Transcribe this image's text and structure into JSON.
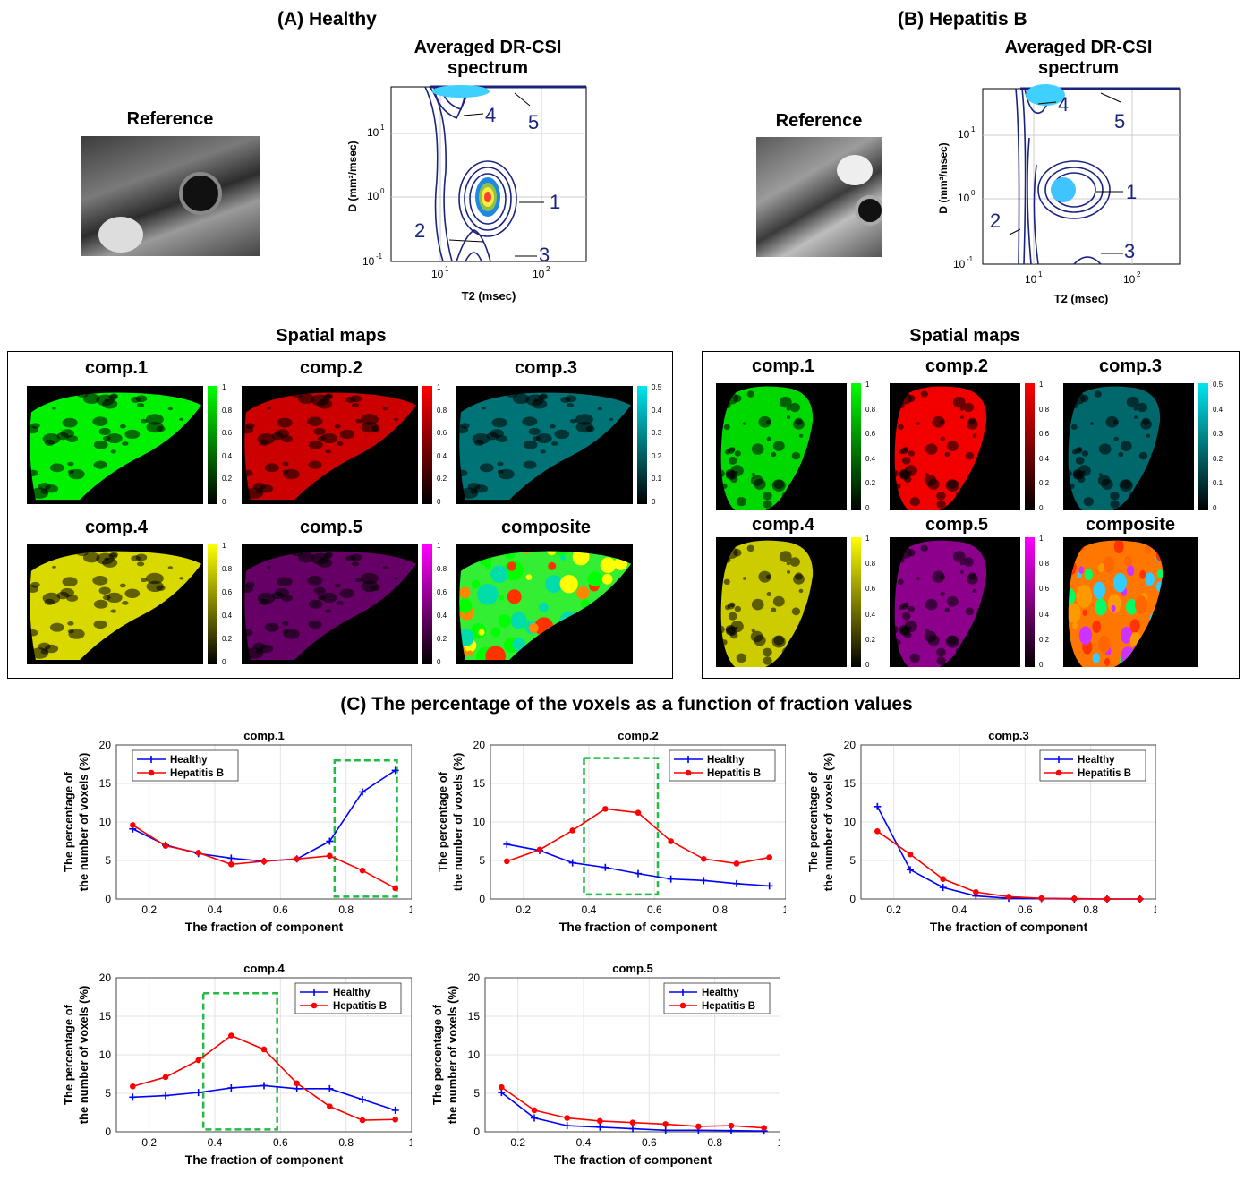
{
  "panel_a": {
    "title": "(A) Healthy",
    "reference_label": "Reference",
    "spectrum_title_line1": "Averaged DR-CSI",
    "spectrum_title_line2": "spectrum",
    "spectrum_xlabel": "T2 (msec)",
    "spectrum_ylabel": "D (mm²/msec)",
    "peak_labels": [
      "1",
      "2",
      "3",
      "4",
      "5"
    ],
    "spatial_maps_title": "Spatial maps"
  },
  "panel_b": {
    "title": "(B) Hepatitis B",
    "reference_label": "Reference",
    "spectrum_title_line1": "Averaged DR-CSI",
    "spectrum_title_line2": "spectrum",
    "spectrum_xlabel": "T2 (msec)",
    "spectrum_ylabel": "D (mm²/msec)",
    "peak_labels": [
      "1",
      "2",
      "3",
      "4",
      "5"
    ],
    "spatial_maps_title": "Spatial maps"
  },
  "map_titles": [
    "comp.1",
    "comp.2",
    "comp.3",
    "comp.4",
    "comp.5",
    "composite"
  ],
  "colorbar_ticks_full": [
    "1",
    "0.8",
    "0.6",
    "0.4",
    "0.2",
    "0"
  ],
  "colorbar_ticks_half": [
    "0.5",
    "0.4",
    "0.3",
    "0.2",
    "0.1",
    "0"
  ],
  "colors": {
    "comp1": "#00ff00",
    "comp2": "#ff0000",
    "comp3": "#00e5ee",
    "comp4": "#ffff00",
    "comp5": "#ff00ff",
    "healthy": "#0000ff",
    "hepatitis": "#ff0000",
    "box": "#22bb44"
  },
  "panel_c_title": "(C) The percentage of the voxels as a function of fraction values",
  "chart_data": [
    {
      "type": "line",
      "title": "comp.1",
      "xlabel": "The fraction of component",
      "ylabel": "The percentage of the number of voxels (%)",
      "xlim": [
        0.1,
        1
      ],
      "ylim": [
        0,
        20
      ],
      "x": [
        0.15,
        0.25,
        0.35,
        0.45,
        0.55,
        0.65,
        0.75,
        0.85,
        0.95
      ],
      "series": [
        {
          "name": "Healthy",
          "values": [
            9.1,
            7.0,
            5.9,
            5.3,
            4.9,
            5.2,
            7.5,
            13.9,
            16.7
          ]
        },
        {
          "name": "Hepatitis B",
          "values": [
            9.6,
            6.9,
            6.0,
            4.5,
            4.9,
            5.2,
            5.6,
            3.7,
            1.4
          ]
        }
      ]
    },
    {
      "type": "line",
      "title": "comp.2",
      "xlabel": "The fraction of component",
      "ylabel": "The percentage of the number of voxels (%)",
      "xlim": [
        0.1,
        1
      ],
      "ylim": [
        0,
        20
      ],
      "x": [
        0.15,
        0.25,
        0.35,
        0.45,
        0.55,
        0.65,
        0.75,
        0.85,
        0.95
      ],
      "series": [
        {
          "name": "Healthy",
          "values": [
            7.1,
            6.3,
            4.7,
            4.1,
            3.3,
            2.6,
            2.4,
            2.0,
            1.7
          ]
        },
        {
          "name": "Hepatitis B",
          "values": [
            4.9,
            6.4,
            8.9,
            11.7,
            11.2,
            7.5,
            5.2,
            4.6,
            5.4
          ]
        }
      ]
    },
    {
      "type": "line",
      "title": "comp.3",
      "xlabel": "The fraction of component",
      "ylabel": "The percentage of the number of voxels (%)",
      "xlim": [
        0.1,
        1
      ],
      "ylim": [
        0,
        20
      ],
      "x": [
        0.15,
        0.25,
        0.35,
        0.45,
        0.55,
        0.65,
        0.75,
        0.85,
        0.95
      ],
      "series": [
        {
          "name": "Healthy",
          "values": [
            12.0,
            3.8,
            1.5,
            0.4,
            0.1,
            0.05,
            0.0,
            0.0,
            0.0
          ]
        },
        {
          "name": "Hepatitis B",
          "values": [
            8.8,
            5.8,
            2.6,
            0.9,
            0.3,
            0.1,
            0.05,
            0.0,
            0.0
          ]
        }
      ]
    },
    {
      "type": "line",
      "title": "comp.4",
      "xlabel": "The fraction of component",
      "ylabel": "The percentage of the number of voxels (%)",
      "xlim": [
        0.1,
        1
      ],
      "ylim": [
        0,
        20
      ],
      "x": [
        0.15,
        0.25,
        0.35,
        0.45,
        0.55,
        0.65,
        0.75,
        0.85,
        0.95
      ],
      "series": [
        {
          "name": "Healthy",
          "values": [
            4.5,
            4.7,
            5.1,
            5.7,
            6.0,
            5.6,
            5.6,
            4.2,
            2.8
          ]
        },
        {
          "name": "Hepatitis B",
          "values": [
            5.9,
            7.1,
            9.3,
            12.5,
            10.7,
            6.3,
            3.3,
            1.5,
            1.6
          ]
        }
      ]
    },
    {
      "type": "line",
      "title": "comp.5",
      "xlabel": "The fraction of component",
      "ylabel": "The percentage of the number of voxels (%)",
      "xlim": [
        0.1,
        1
      ],
      "ylim": [
        0,
        20
      ],
      "x": [
        0.15,
        0.25,
        0.35,
        0.45,
        0.55,
        0.65,
        0.75,
        0.85,
        0.95
      ],
      "series": [
        {
          "name": "Healthy",
          "values": [
            5.1,
            1.8,
            0.8,
            0.6,
            0.4,
            0.2,
            0.2,
            0.15,
            0.1
          ]
        },
        {
          "name": "Hepatitis B",
          "values": [
            5.8,
            2.8,
            1.8,
            1.4,
            1.2,
            1.0,
            0.7,
            0.8,
            0.5
          ]
        }
      ]
    }
  ],
  "chart_axis": {
    "xticks": [
      "0.2",
      "0.4",
      "0.6",
      "0.8",
      "1"
    ],
    "yticks": [
      "0",
      "5",
      "10",
      "15",
      "20"
    ]
  }
}
